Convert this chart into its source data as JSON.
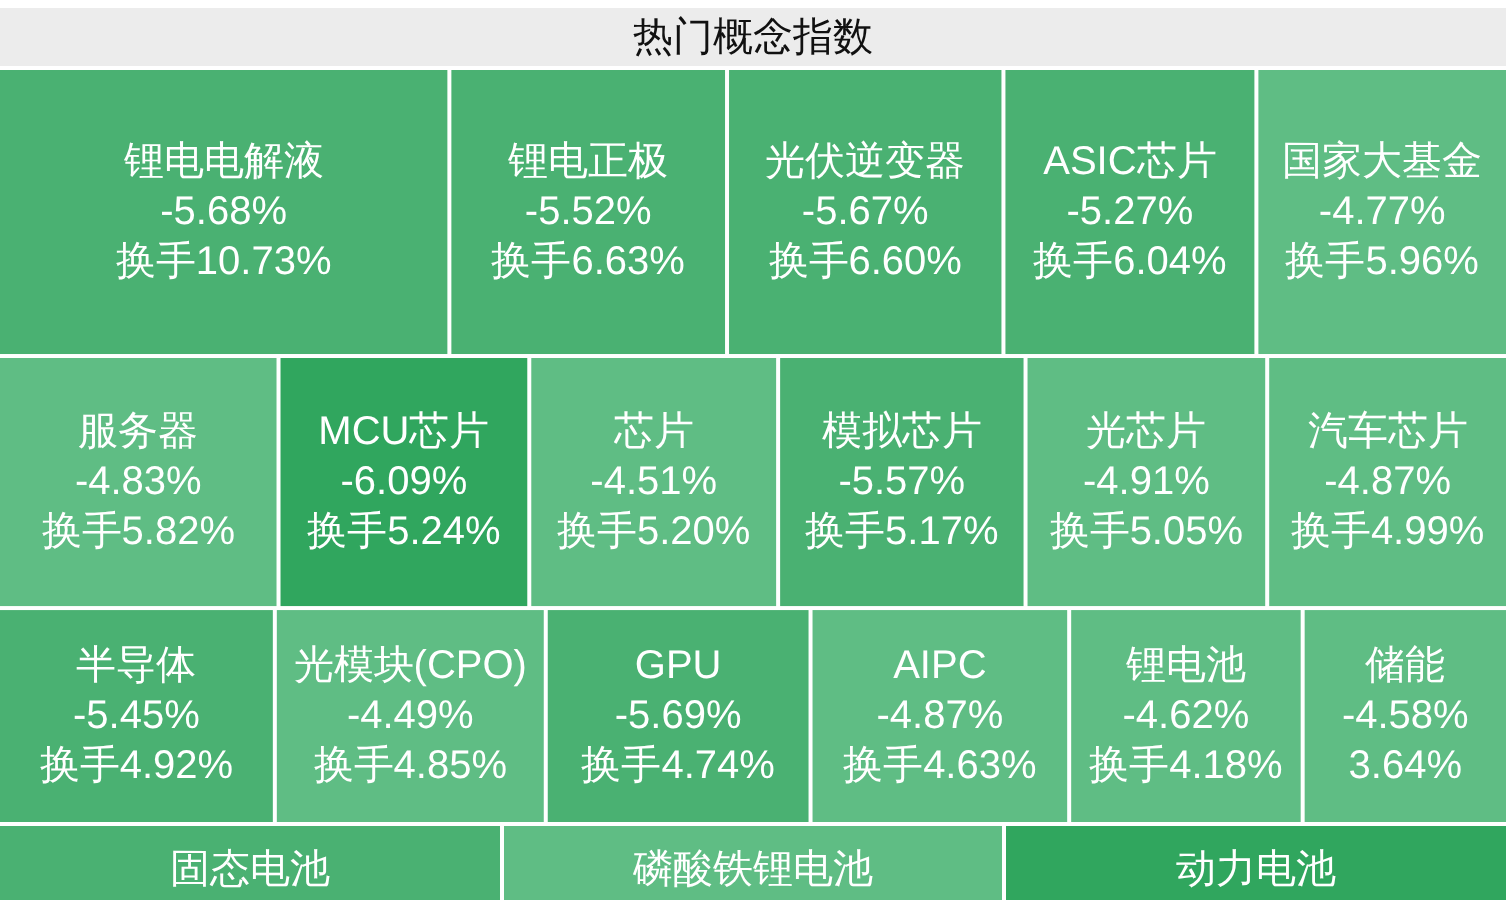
{
  "chart_data": {
    "type": "other",
    "title": "热门概念指数",
    "categories": [
      "锂电电解液",
      "锂电正极",
      "光伏逆变器",
      "ASIC芯片",
      "国家大基金",
      "服务器",
      "MCU芯片",
      "芯片",
      "模拟芯片",
      "光芯片",
      "汽车芯片",
      "半导体",
      "光模块(CPO)",
      "GPU",
      "AIPC",
      "锂电池",
      "储能",
      "固态电池",
      "磷酸铁锂电池",
      "动力电池"
    ],
    "series": [
      {
        "values": [
          -5.68,
          -5.52,
          -5.67,
          -5.27,
          -4.77,
          -4.83,
          -6.09,
          -4.51,
          -5.57,
          -4.91,
          -4.87,
          -5.45,
          -4.49,
          -5.69,
          -4.87,
          -4.62,
          -4.58,
          null,
          null,
          null
        ],
        "value_labels": [
          "-5.68%",
          "-5.52%",
          "-5.67%",
          "-5.27%",
          "-4.77%",
          "-4.83%",
          "-6.09%",
          "-4.51%",
          "-5.57%",
          "-4.91%",
          "-4.87%",
          "-5.45%",
          "-4.49%",
          "-5.69%",
          "-4.87%",
          "-4.62%",
          "-4.58%",
          null,
          null,
          null
        ],
        "colors": [
          "#4ab172",
          "#4ab172",
          "#4ab172",
          "#4ab172",
          "#5fbd84",
          "#5fbd84",
          "#30a65e",
          "#5fbd84",
          "#4ab172",
          "#5fbd84",
          "#5fbd84",
          "#4ab172",
          "#5fbd84",
          "#4ab172",
          "#5fbd84",
          "#5fbd84",
          "#5fbd84",
          "#4ab172",
          "#5fbd84",
          "#30a65e"
        ]
      },
      {
        "values": [
          10.73,
          6.63,
          6.6,
          6.04,
          5.96,
          5.82,
          5.24,
          5.2,
          5.17,
          5.05,
          4.99,
          4.92,
          4.85,
          4.74,
          4.63,
          4.18,
          3.64,
          null,
          null,
          null
        ],
        "value_labels": [
          "换手10.73%",
          "换手6.63%",
          "换手6.60%",
          "换手6.04%",
          "换手5.96%",
          "换手5.82%",
          "换手5.24%",
          "换手5.20%",
          "换手5.17%",
          "换手5.05%",
          "换手4.99%",
          "换手4.92%",
          "换手4.85%",
          "换手4.74%",
          "换手4.63%",
          "换手4.18%",
          "3.64%",
          null,
          null,
          null
        ]
      }
    ]
  }
}
